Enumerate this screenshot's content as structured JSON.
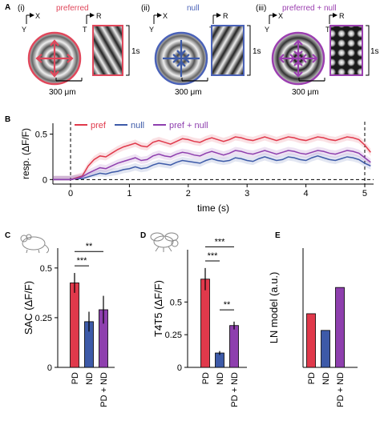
{
  "panel_labels": {
    "A": "A",
    "B": "B",
    "C": "C",
    "D": "D",
    "E": "E"
  },
  "panel_a": {
    "stimuli": [
      {
        "numeral": "(i)",
        "title": "preferred",
        "color": "#e0475b"
      },
      {
        "numeral": "(ii)",
        "title": "null",
        "color": "#4a62b8"
      },
      {
        "numeral": "(iii)",
        "title": "preferred + null",
        "color": "#9b3fb0"
      }
    ],
    "axis_x": "X",
    "axis_y": "Y",
    "axis_r": "R",
    "axis_t": "T",
    "scale_bar": "300 μm",
    "time_bar": "1s"
  },
  "colors": {
    "pref": "#e0394b",
    "null": "#3d5aa8",
    "pref_null": "#8e3fae"
  },
  "chart_data": [
    {
      "type": "line",
      "panel": "B",
      "xlabel": "time (s)",
      "ylabel": "resp. (ΔF/F)",
      "xlim": [
        -0.3,
        5.15
      ],
      "ylim": [
        -0.05,
        0.62
      ],
      "xticks": [
        0,
        1,
        2,
        3,
        4,
        5
      ],
      "yticks": [
        0,
        0.5
      ],
      "yticklabels": [
        "0",
        "0.5"
      ],
      "vlines": [
        0,
        5
      ],
      "legend_position": "top",
      "x": [
        -0.3,
        -0.2,
        -0.1,
        0,
        0.1,
        0.2,
        0.3,
        0.4,
        0.5,
        0.6,
        0.7,
        0.8,
        0.9,
        1.0,
        1.1,
        1.2,
        1.3,
        1.4,
        1.5,
        1.6,
        1.7,
        1.8,
        1.9,
        2.0,
        2.1,
        2.2,
        2.3,
        2.4,
        2.5,
        2.6,
        2.7,
        2.8,
        2.9,
        3.0,
        3.1,
        3.2,
        3.3,
        3.4,
        3.5,
        3.6,
        3.7,
        3.8,
        3.9,
        4.0,
        4.1,
        4.2,
        4.3,
        4.4,
        4.5,
        4.6,
        4.7,
        4.8,
        4.9,
        5.0,
        5.1
      ],
      "series": [
        {
          "name": "pref",
          "values": [
            0,
            0,
            0,
            0,
            0.02,
            0.04,
            0.15,
            0.22,
            0.26,
            0.25,
            0.29,
            0.33,
            0.36,
            0.38,
            0.4,
            0.37,
            0.36,
            0.41,
            0.43,
            0.41,
            0.39,
            0.42,
            0.45,
            0.44,
            0.42,
            0.41,
            0.44,
            0.46,
            0.44,
            0.42,
            0.44,
            0.47,
            0.46,
            0.44,
            0.43,
            0.45,
            0.47,
            0.45,
            0.43,
            0.45,
            0.47,
            0.46,
            0.44,
            0.43,
            0.45,
            0.47,
            0.46,
            0.44,
            0.43,
            0.45,
            0.47,
            0.46,
            0.44,
            0.38,
            0.3
          ]
        },
        {
          "name": "null",
          "values": [
            0,
            0,
            0,
            0,
            0.01,
            0.01,
            0.03,
            0.05,
            0.07,
            0.06,
            0.08,
            0.09,
            0.11,
            0.12,
            0.14,
            0.12,
            0.13,
            0.16,
            0.18,
            0.17,
            0.16,
            0.19,
            0.21,
            0.2,
            0.19,
            0.18,
            0.21,
            0.23,
            0.21,
            0.2,
            0.21,
            0.24,
            0.23,
            0.21,
            0.2,
            0.23,
            0.25,
            0.23,
            0.21,
            0.22,
            0.25,
            0.24,
            0.22,
            0.21,
            0.24,
            0.26,
            0.24,
            0.22,
            0.21,
            0.23,
            0.25,
            0.24,
            0.22,
            0.18,
            0.15
          ]
        },
        {
          "name": "pref + null",
          "values": [
            0,
            0,
            0,
            0,
            0.01,
            0.03,
            0.07,
            0.1,
            0.13,
            0.12,
            0.15,
            0.18,
            0.2,
            0.22,
            0.24,
            0.21,
            0.22,
            0.26,
            0.28,
            0.26,
            0.25,
            0.28,
            0.3,
            0.29,
            0.27,
            0.26,
            0.29,
            0.31,
            0.29,
            0.27,
            0.29,
            0.32,
            0.31,
            0.29,
            0.28,
            0.3,
            0.32,
            0.3,
            0.28,
            0.3,
            0.32,
            0.31,
            0.29,
            0.28,
            0.3,
            0.32,
            0.31,
            0.29,
            0.28,
            0.3,
            0.32,
            0.31,
            0.29,
            0.24,
            0.19
          ]
        }
      ]
    },
    {
      "type": "bar",
      "panel": "C",
      "ylabel": "SAC (ΔF/F)",
      "ylim": [
        0,
        0.6
      ],
      "yticks": [
        0,
        0.25,
        0.5
      ],
      "yticklabels": [
        "0",
        "0.25",
        "0.5"
      ],
      "categories": [
        "PD",
        "ND",
        "PD + ND"
      ],
      "values": [
        0.425,
        0.23,
        0.29
      ],
      "errors": [
        0.05,
        0.05,
        0.07
      ],
      "significance": [
        {
          "from": 0,
          "to": 1,
          "label": "***"
        },
        {
          "from": 0,
          "to": 2,
          "label": "**"
        }
      ]
    },
    {
      "type": "bar",
      "panel": "D",
      "ylabel": "T4T5 (ΔF/F)",
      "ylim": [
        0,
        0.9
      ],
      "yticks": [
        0,
        0.25,
        0.5
      ],
      "yticklabels": [
        "0",
        "0.25",
        "0.5"
      ],
      "categories": [
        "PD",
        "ND",
        "PD + ND"
      ],
      "values": [
        0.675,
        0.11,
        0.32
      ],
      "errors": [
        0.085,
        0.015,
        0.03
      ],
      "significance": [
        {
          "from": 0,
          "to": 1,
          "label": "***"
        },
        {
          "from": 0,
          "to": 2,
          "label": "***"
        },
        {
          "from": 1,
          "to": 2,
          "label": "**"
        }
      ]
    },
    {
      "type": "bar",
      "panel": "E",
      "ylabel": "LN model (a.u.)",
      "ylim": [
        0,
        1
      ],
      "categories": [
        "PD",
        "ND",
        "PD + ND"
      ],
      "values": [
        0.45,
        0.31,
        0.67
      ]
    }
  ]
}
